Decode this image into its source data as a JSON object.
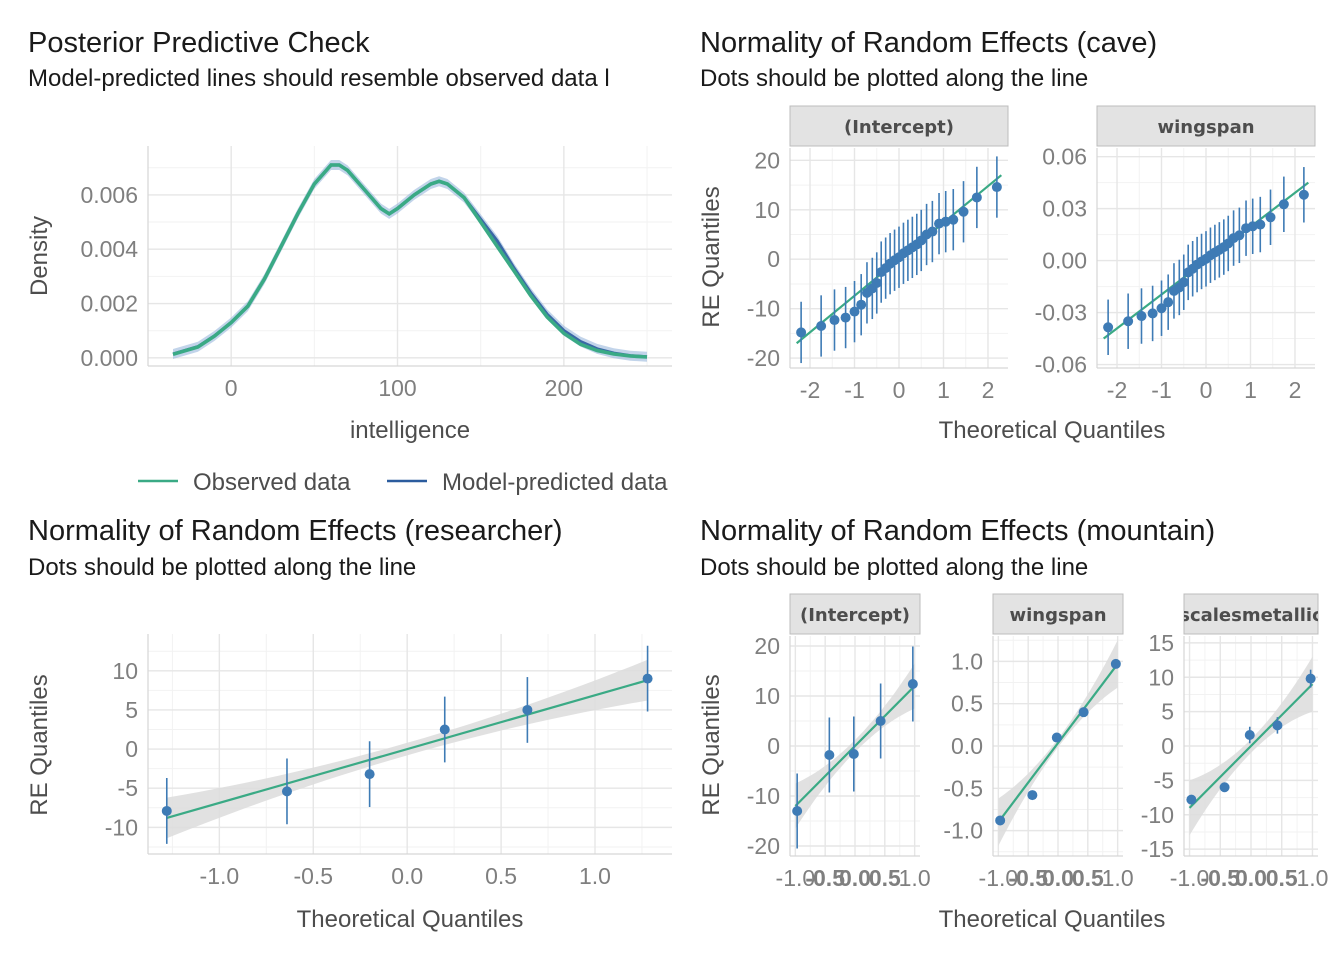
{
  "colors": {
    "observed": "#3aaa85",
    "predicted": "#2b5c9e",
    "predicted_band": "#8fb0d8",
    "point": "#3e7bb5",
    "ref_line": "#3aaa85",
    "ribbon": "#dcdcdc",
    "grid_major": "#e6e6e6",
    "grid_minor": "#f2f2f2",
    "strip_bg": "#e3e3e3",
    "strip_border": "#bdbdbd"
  },
  "chart_data": [
    {
      "id": "ppc",
      "type": "line",
      "title": "Posterior Predictive Check",
      "subtitle": "Model-predicted lines should resemble observed data l",
      "xlabel": "intelligence",
      "ylabel": "Density",
      "xlim": [
        -50,
        265
      ],
      "ylim": [
        -0.0003,
        0.0078
      ],
      "x_ticks": [
        0,
        100,
        200
      ],
      "x_tick_labels": [
        "0",
        "100",
        "200"
      ],
      "y_ticks": [
        0.0,
        0.002,
        0.004,
        0.006
      ],
      "y_tick_labels": [
        "0.000",
        "0.002",
        "0.004",
        "0.006"
      ],
      "grid": true,
      "legend": {
        "position": "bottom",
        "items": [
          "Observed data",
          "Model-predicted data"
        ]
      },
      "series": [
        {
          "name": "Observed data",
          "x": [
            -35,
            -20,
            -10,
            0,
            10,
            20,
            30,
            40,
            50,
            60,
            65,
            70,
            80,
            90,
            95,
            100,
            110,
            120,
            125,
            130,
            140,
            150,
            160,
            170,
            180,
            190,
            200,
            210,
            220,
            230,
            240,
            250
          ],
          "y": [
            0.00013,
            0.0004,
            0.0008,
            0.0013,
            0.0019,
            0.0029,
            0.0041,
            0.0053,
            0.0064,
            0.0071,
            0.0071,
            0.0069,
            0.0062,
            0.0055,
            0.0053,
            0.0055,
            0.006,
            0.0064,
            0.0065,
            0.0064,
            0.0059,
            0.005,
            0.0041,
            0.0032,
            0.0023,
            0.0015,
            0.0009,
            0.0005,
            0.00027,
            0.00014,
            7e-05,
            3e-05
          ]
        },
        {
          "name": "Model-predicted data",
          "x": [
            -35,
            -20,
            -10,
            0,
            10,
            20,
            30,
            40,
            50,
            60,
            65,
            70,
            80,
            90,
            95,
            100,
            110,
            120,
            125,
            130,
            140,
            150,
            160,
            170,
            180,
            190,
            200,
            210,
            220,
            230,
            240,
            250
          ],
          "y": [
            0.00014,
            0.00041,
            0.00081,
            0.0013,
            0.0019,
            0.0029,
            0.0041,
            0.0053,
            0.0064,
            0.0071,
            0.0071,
            0.0069,
            0.0062,
            0.0055,
            0.0053,
            0.0055,
            0.006,
            0.0064,
            0.0065,
            0.0064,
            0.0059,
            0.0051,
            0.0043,
            0.0033,
            0.0024,
            0.0016,
            0.001,
            0.0006,
            0.00033,
            0.00017,
            8e-05,
            4e-05
          ]
        }
      ]
    },
    {
      "id": "cave",
      "type": "scatter",
      "title": "Normality of Random Effects (cave)",
      "subtitle": "Dots should be plotted along the line",
      "xlabel": "Theoretical Quantiles",
      "ylabel": "RE Quantiles",
      "panels": [
        {
          "strip": "(Intercept)",
          "xlim": [
            -2.45,
            2.45
          ],
          "ylim": [
            -22,
            22.5
          ],
          "x_ticks": [
            -2,
            -1,
            0,
            1,
            2
          ],
          "x_tick_labels": [
            "-2",
            "-1",
            "0",
            "1",
            "2"
          ],
          "y_ticks": [
            -20,
            -10,
            0,
            10,
            20
          ],
          "y_tick_labels": [
            "-20",
            "-10",
            "0",
            "10",
            "20"
          ],
          "line": {
            "x": [
              -2.3,
              2.3
            ],
            "y": [
              -17,
              17
            ]
          },
          "points": [
            {
              "x": -2.2,
              "y": -14.8,
              "e": 6.2
            },
            {
              "x": -1.75,
              "y": -13.5,
              "e": 6.2
            },
            {
              "x": -1.45,
              "y": -12.3,
              "e": 6.2
            },
            {
              "x": -1.2,
              "y": -11.8,
              "e": 6.2
            },
            {
              "x": -1.0,
              "y": -10.6,
              "e": 6.2
            },
            {
              "x": -0.85,
              "y": -9.2,
              "e": 6.2
            },
            {
              "x": -0.72,
              "y": -6.8,
              "e": 6.2
            },
            {
              "x": -0.6,
              "y": -5.9,
              "e": 6.2
            },
            {
              "x": -0.5,
              "y": -4.8,
              "e": 6.2
            },
            {
              "x": -0.4,
              "y": -2.6,
              "e": 6.2
            },
            {
              "x": -0.3,
              "y": -1.8,
              "e": 6.2
            },
            {
              "x": -0.2,
              "y": -0.9,
              "e": 6.2
            },
            {
              "x": -0.1,
              "y": -0.2,
              "e": 6.2
            },
            {
              "x": 0.0,
              "y": 0.4,
              "e": 6.2
            },
            {
              "x": 0.1,
              "y": 1.2,
              "e": 6.2
            },
            {
              "x": 0.2,
              "y": 1.8,
              "e": 6.2
            },
            {
              "x": 0.3,
              "y": 2.4,
              "e": 6.2
            },
            {
              "x": 0.4,
              "y": 3.0,
              "e": 6.2
            },
            {
              "x": 0.5,
              "y": 3.8,
              "e": 6.2
            },
            {
              "x": 0.62,
              "y": 5.0,
              "e": 6.2
            },
            {
              "x": 0.75,
              "y": 5.6,
              "e": 6.2
            },
            {
              "x": 0.9,
              "y": 7.2,
              "e": 6.2
            },
            {
              "x": 1.05,
              "y": 7.6,
              "e": 6.2
            },
            {
              "x": 1.22,
              "y": 8.0,
              "e": 6.2
            },
            {
              "x": 1.45,
              "y": 9.6,
              "e": 6.2
            },
            {
              "x": 1.75,
              "y": 12.5,
              "e": 6.2
            },
            {
              "x": 2.2,
              "y": 14.6,
              "e": 6.2
            }
          ]
        },
        {
          "strip": "wingspan",
          "xlim": [
            -2.45,
            2.45
          ],
          "ylim": [
            -0.062,
            0.065
          ],
          "x_ticks": [
            -2,
            -1,
            0,
            1,
            2
          ],
          "x_tick_labels": [
            "-2",
            "-1",
            "0",
            "1",
            "2"
          ],
          "y_ticks": [
            -0.06,
            -0.03,
            0.0,
            0.03,
            0.06
          ],
          "y_tick_labels": [
            "-0.06",
            "-0.03",
            "0.00",
            "0.03",
            "0.06"
          ],
          "line": {
            "x": [
              -2.3,
              2.3
            ],
            "y": [
              -0.045,
              0.045
            ]
          },
          "points": [
            {
              "x": -2.2,
              "y": -0.0385,
              "e": 0.016
            },
            {
              "x": -1.75,
              "y": -0.035,
              "e": 0.016
            },
            {
              "x": -1.45,
              "y": -0.032,
              "e": 0.016
            },
            {
              "x": -1.2,
              "y": -0.0305,
              "e": 0.016
            },
            {
              "x": -1.0,
              "y": -0.0275,
              "e": 0.016
            },
            {
              "x": -0.85,
              "y": -0.024,
              "e": 0.016
            },
            {
              "x": -0.72,
              "y": -0.0175,
              "e": 0.016
            },
            {
              "x": -0.6,
              "y": -0.0155,
              "e": 0.016
            },
            {
              "x": -0.5,
              "y": -0.0125,
              "e": 0.016
            },
            {
              "x": -0.4,
              "y": -0.0068,
              "e": 0.016
            },
            {
              "x": -0.3,
              "y": -0.0047,
              "e": 0.016
            },
            {
              "x": -0.2,
              "y": -0.0023,
              "e": 0.016
            },
            {
              "x": -0.1,
              "y": -0.0005,
              "e": 0.016
            },
            {
              "x": 0.0,
              "y": 0.001,
              "e": 0.016
            },
            {
              "x": 0.1,
              "y": 0.0031,
              "e": 0.016
            },
            {
              "x": 0.2,
              "y": 0.0047,
              "e": 0.016
            },
            {
              "x": 0.3,
              "y": 0.0062,
              "e": 0.016
            },
            {
              "x": 0.4,
              "y": 0.0078,
              "e": 0.016
            },
            {
              "x": 0.5,
              "y": 0.0099,
              "e": 0.016
            },
            {
              "x": 0.62,
              "y": 0.013,
              "e": 0.016
            },
            {
              "x": 0.75,
              "y": 0.0146,
              "e": 0.016
            },
            {
              "x": 0.9,
              "y": 0.0187,
              "e": 0.016
            },
            {
              "x": 1.05,
              "y": 0.0198,
              "e": 0.016
            },
            {
              "x": 1.22,
              "y": 0.0208,
              "e": 0.016
            },
            {
              "x": 1.45,
              "y": 0.025,
              "e": 0.016
            },
            {
              "x": 1.75,
              "y": 0.0325,
              "e": 0.016
            },
            {
              "x": 2.2,
              "y": 0.038,
              "e": 0.016
            }
          ]
        }
      ]
    },
    {
      "id": "researcher",
      "type": "scatter",
      "title": "Normality of Random Effects (researcher)",
      "subtitle": "Dots should be plotted along the line",
      "xlabel": "Theoretical Quantiles",
      "ylabel": "RE Quantiles",
      "panels": [
        {
          "strip": "",
          "xlim": [
            -1.38,
            1.41
          ],
          "ylim": [
            -13.4,
            14.7
          ],
          "x_ticks": [
            -1.0,
            -0.5,
            0.0,
            0.5,
            1.0
          ],
          "x_tick_labels": [
            "-1.0",
            "-0.5",
            "0.0",
            "0.5",
            "1.0"
          ],
          "y_ticks": [
            -10,
            -5,
            0,
            5,
            10
          ],
          "y_tick_labels": [
            "-10",
            "-5",
            "0",
            "5",
            "10"
          ],
          "line": {
            "x": [
              -1.28,
              1.28
            ],
            "y": [
              -8.8,
              8.8
            ]
          },
          "band": [
            2.6,
            0.8
          ],
          "points": [
            {
              "x": -1.28,
              "y": -7.9,
              "e": 4.2
            },
            {
              "x": -0.64,
              "y": -5.4,
              "e": 4.2
            },
            {
              "x": -0.2,
              "y": -3.2,
              "e": 4.2
            },
            {
              "x": 0.2,
              "y": 2.5,
              "e": 4.2
            },
            {
              "x": 0.64,
              "y": 5.0,
              "e": 4.2
            },
            {
              "x": 1.28,
              "y": 9.0,
              "e": 4.2
            }
          ]
        }
      ]
    },
    {
      "id": "mountain",
      "type": "scatter",
      "title": "Normality of Random Effects (mountain)",
      "subtitle": "Dots should be plotted along the line",
      "xlabel": "Theoretical Quantiles",
      "ylabel": "RE Quantiles",
      "panels": [
        {
          "strip": "(Intercept)",
          "xlim": [
            -1.09,
            1.09
          ],
          "ylim": [
            -22,
            22
          ],
          "x_ticks": [
            -1.0,
            -0.5,
            0.0,
            0.5,
            1.0
          ],
          "x_tick_labels": [
            "-1.0",
            "-0.5",
            "0.0",
            "0.5",
            "1.0"
          ],
          "y_ticks": [
            -20,
            -10,
            0,
            10,
            20
          ],
          "y_tick_labels": [
            "-20",
            "-10",
            "0",
            "10",
            "20"
          ],
          "line": {
            "x": [
              -1.0,
              1.0
            ],
            "y": [
              -12,
              12
            ]
          },
          "band": [
            4.5,
            1.2
          ],
          "points": [
            {
              "x": -0.97,
              "y": -13.0,
              "e": 7.5
            },
            {
              "x": -0.43,
              "y": -1.8,
              "e": 7.5
            },
            {
              "x": -0.02,
              "y": -1.6,
              "e": 7.5
            },
            {
              "x": 0.43,
              "y": 5.0,
              "e": 7.5
            },
            {
              "x": 0.97,
              "y": 12.4,
              "e": 7.5
            }
          ]
        },
        {
          "strip": "wingspan",
          "xlim": [
            -1.09,
            1.09
          ],
          "ylim": [
            -1.3,
            1.3
          ],
          "x_ticks": [
            -1.0,
            -0.5,
            0.0,
            0.5,
            1.0
          ],
          "x_tick_labels": [
            "-1.0",
            "-0.5",
            "0.0",
            "0.5",
            "1.0"
          ],
          "y_ticks": [
            -1.0,
            -0.5,
            0.0,
            0.5,
            1.0
          ],
          "y_tick_labels": [
            "-1.0",
            "-0.5",
            "0.0",
            "0.5",
            "1.0"
          ],
          "line": {
            "x": [
              -1.0,
              1.0
            ],
            "y": [
              -0.9,
              0.97
            ]
          },
          "band": [
            0.28,
            0.05
          ],
          "points": [
            {
              "x": -0.97,
              "y": -0.88,
              "e": 0.0
            },
            {
              "x": -0.43,
              "y": -0.58,
              "e": 0.0
            },
            {
              "x": -0.02,
              "y": 0.1,
              "e": 0.0
            },
            {
              "x": 0.43,
              "y": 0.4,
              "e": 0.0
            },
            {
              "x": 0.97,
              "y": 0.97,
              "e": 0.0
            }
          ]
        },
        {
          "strip": "scalesmetallic",
          "xlim": [
            -1.09,
            1.09
          ],
          "ylim": [
            -16,
            16
          ],
          "x_ticks": [
            -1.0,
            -0.5,
            0.0,
            0.5,
            1.0
          ],
          "x_tick_labels": [
            "-1.0",
            "-0.5",
            "0.0",
            "0.5",
            "1.0"
          ],
          "y_ticks": [
            -15,
            -10,
            -5,
            0,
            5,
            10,
            15
          ],
          "y_tick_labels": [
            "-15",
            "-10",
            "-5",
            "0",
            "5",
            "10",
            "15"
          ],
          "line": {
            "x": [
              -1.0,
              1.0
            ],
            "y": [
              -9,
              9
            ]
          },
          "band": [
            4.0,
            1.0
          ],
          "points": [
            {
              "x": -0.97,
              "y": -7.8,
              "e": 0.0
            },
            {
              "x": -0.43,
              "y": -6.0,
              "e": 0.0
            },
            {
              "x": -0.02,
              "y": 1.6,
              "e": 1.2
            },
            {
              "x": 0.43,
              "y": 3.0,
              "e": 1.2
            },
            {
              "x": 0.97,
              "y": 9.8,
              "e": 1.3
            }
          ]
        }
      ]
    }
  ]
}
